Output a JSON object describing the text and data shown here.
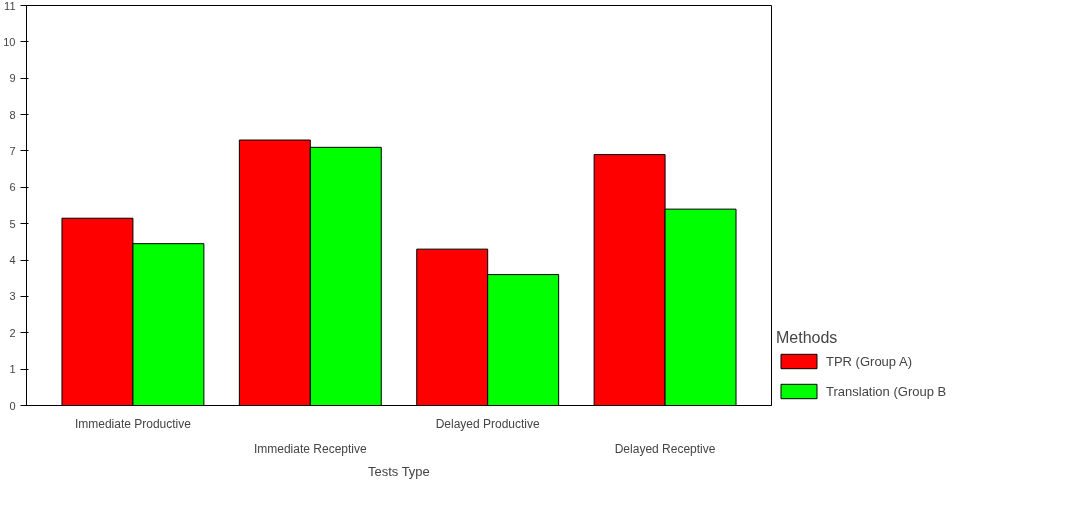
{
  "chart_data": {
    "type": "bar",
    "xlabel": "Tests Type",
    "legend_title": "Methods",
    "categories": [
      "Immediate Productive",
      "Immediate Receptive",
      "Delayed Productive",
      "Delayed Receptive"
    ],
    "series": [
      {
        "name": "TPR (Group A)",
        "color": "#ff0000",
        "values": [
          5.15,
          7.3,
          4.3,
          6.9
        ]
      },
      {
        "name": "Translation (Group B",
        "color": "#00ff00",
        "values": [
          4.45,
          7.1,
          3.6,
          5.4
        ]
      }
    ],
    "ylim": [
      0,
      11
    ],
    "yticks": [
      0,
      1,
      2,
      3,
      4,
      5,
      6,
      7,
      8,
      9,
      10,
      11
    ],
    "grid": false,
    "legend": "right"
  }
}
